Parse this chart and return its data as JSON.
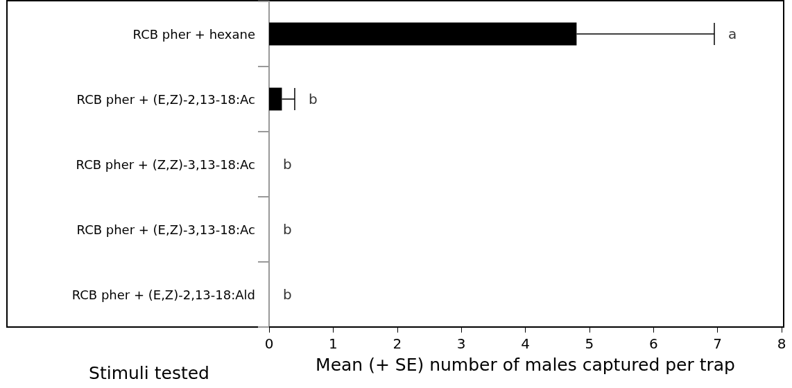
{
  "chart_data": {
    "type": "bar",
    "orientation": "horizontal",
    "categories": [
      "RCB pher + hexane",
      "RCB pher + (E,Z)-2,13-18:Ac",
      "RCB pher + (Z,Z)-3,13-18:Ac",
      "RCB pher + (E,Z)-3,13-18:Ac",
      "RCB pher + (E,Z)-2,13-18:Ald"
    ],
    "values": [
      4.8,
      0.2,
      0,
      0,
      0
    ],
    "color": "#000000",
    "errors": [
      [
        4.8,
        6.95
      ],
      [
        0.2,
        0.4
      ],
      null,
      null,
      null
    ],
    "xlim": [
      0,
      8
    ],
    "xticks": [
      0,
      1,
      2,
      3,
      4,
      5,
      6,
      7,
      8
    ],
    "xlabel": "Mean (+ SE) number of males captured per trap",
    "ylabel": "Stimuli tested",
    "annotations": [
      "a",
      "b",
      "b",
      "b",
      "b"
    ],
    "grid": false
  }
}
